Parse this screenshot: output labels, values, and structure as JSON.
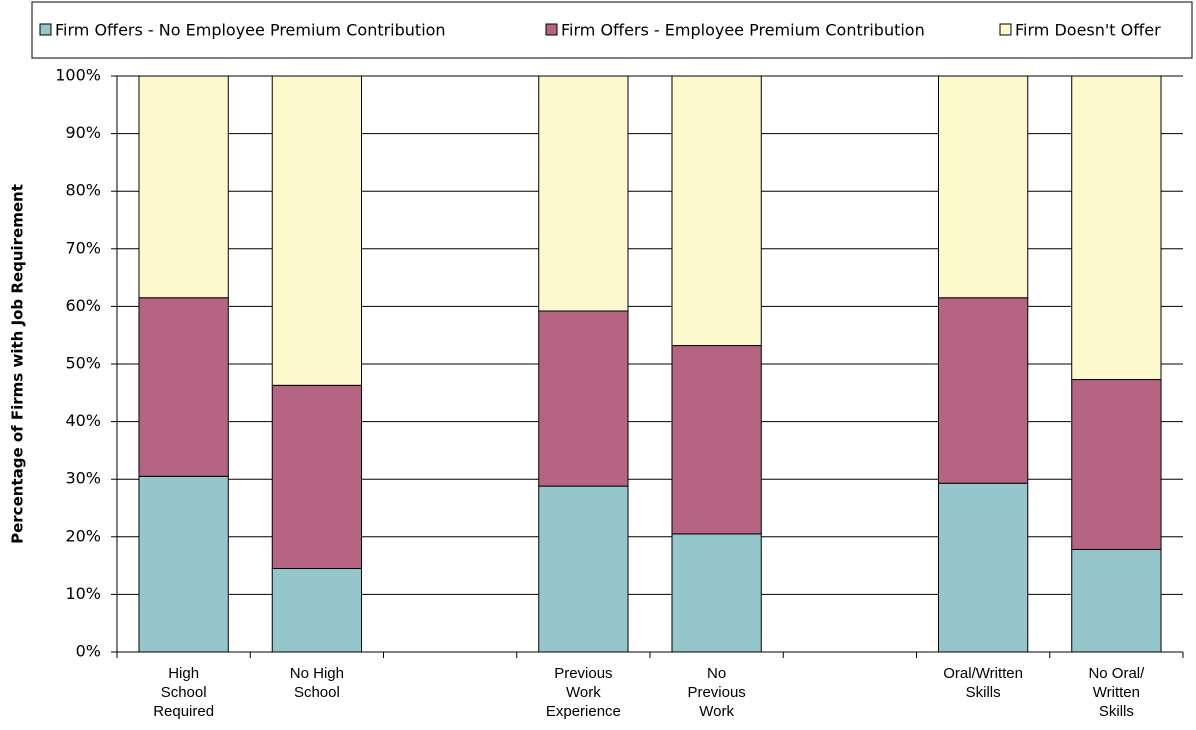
{
  "chart_data": {
    "type": "stacked_bar",
    "y_label": "Percentage of Firms with Job Requirement",
    "categories": [
      "High\nSchool\nRequired",
      "No High\nSchool",
      null,
      "Previous\nWork\nExperience",
      "No\nPrevious\nWork",
      null,
      "Oral/Written\nSkills",
      "No Oral/\nWritten\nSkills"
    ],
    "series": [
      {
        "name": "Firm Offers - No Employee Premium Contribution",
        "color": "#95c6cc",
        "values": [
          30.5,
          14.5,
          null,
          28.8,
          20.5,
          null,
          29.3,
          17.8
        ]
      },
      {
        "name": "Firm Offers - Employee Premium Contribution",
        "color": "#b56482",
        "values": [
          31,
          31.8,
          null,
          30.4,
          32.7,
          null,
          32.2,
          29.5
        ]
      },
      {
        "name": "Firm Doesn't Offer",
        "color": "#fdf9cc",
        "values": [
          38.5,
          53.7,
          null,
          40.8,
          46.8,
          null,
          38.5,
          52.7
        ]
      }
    ],
    "ylim": [
      0,
      100
    ],
    "yticks": [
      {
        "value": 0,
        "label": "0%"
      },
      {
        "value": 10,
        "label": "10%"
      },
      {
        "value": 20,
        "label": "20%"
      },
      {
        "value": 30,
        "label": "30%"
      },
      {
        "value": 40,
        "label": "40%"
      },
      {
        "value": 50,
        "label": "50%"
      },
      {
        "value": 60,
        "label": "60%"
      },
      {
        "value": 70,
        "label": "70%"
      },
      {
        "value": 80,
        "label": "80%"
      },
      {
        "value": 90,
        "label": "90%"
      },
      {
        "value": 100,
        "label": "100%"
      }
    ],
    "grid": true
  }
}
